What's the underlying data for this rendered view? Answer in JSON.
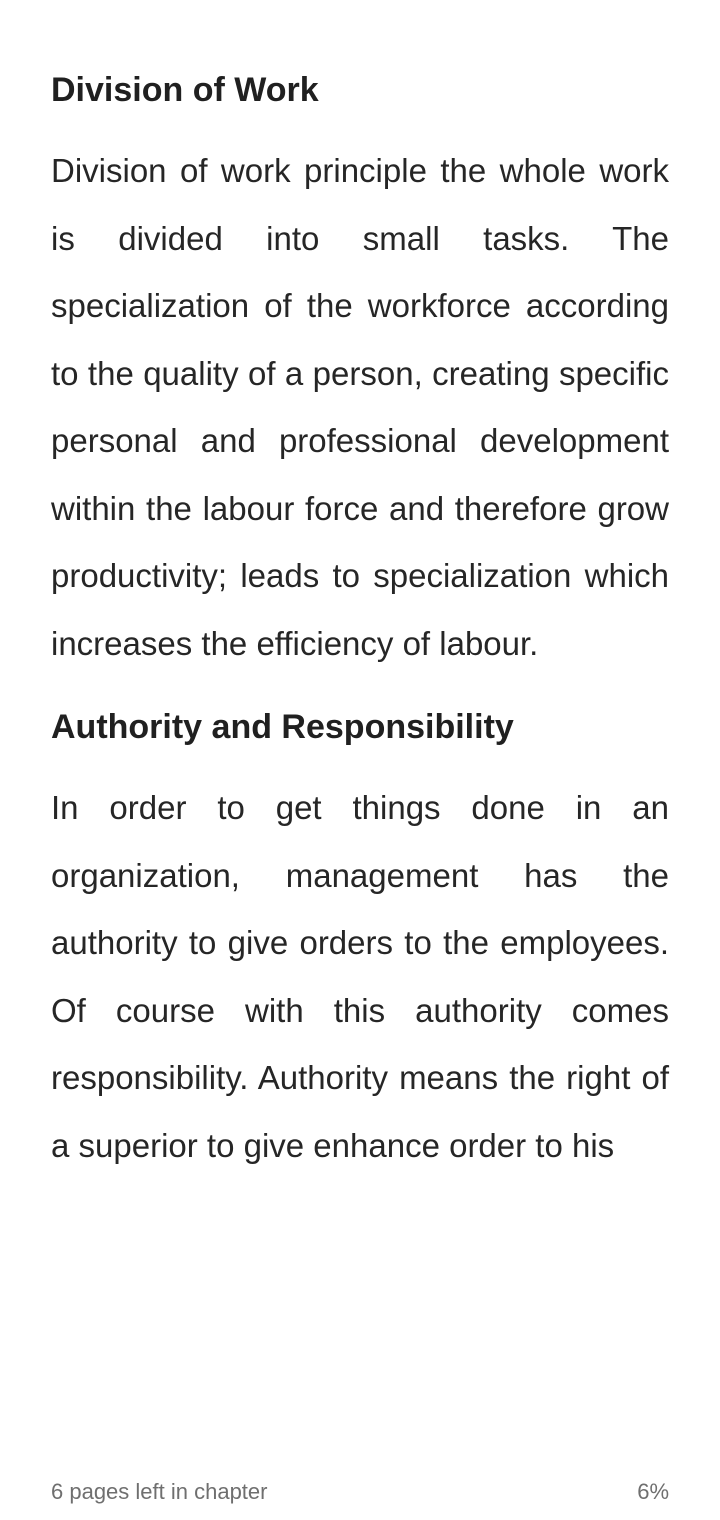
{
  "reader": {
    "sections": [
      {
        "title": "Division of Work",
        "body": "Division of work principle the whole work is divided into small tasks. The specialization of the workforce according to the quality of a person, creating specific personal and professional development within the labour force and therefore grow productivity; leads to specialization which increases the efficiency of labour."
      },
      {
        "title": "Authority and Responsibility",
        "body": "In order to get things done in an organization, management has the authority to give orders to the employees. Of course with this authority comes responsibility. Authority means the right of a superior to give enhance order to his"
      }
    ]
  },
  "footer": {
    "pages_left": "6 pages left in chapter",
    "progress": "6%"
  }
}
